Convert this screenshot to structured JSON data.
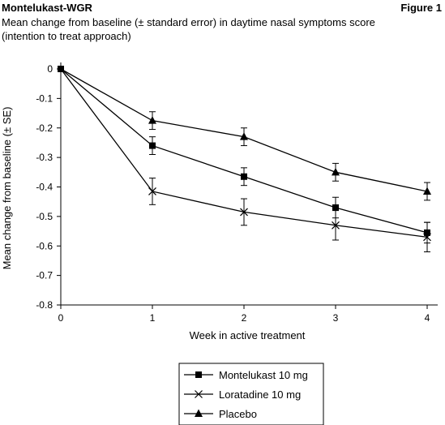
{
  "header": {
    "left": "Montelukast-WGR",
    "right": "Figure 1"
  },
  "subtitle_line1": "Mean change from baseline (± standard error) in daytime nasal symptoms score",
  "subtitle_line2": "(intention to treat approach)",
  "chart_data": {
    "type": "line",
    "xlabel": "Week in active treatment",
    "ylabel": "Mean change from baseline (± SE)",
    "xlim": [
      0,
      4
    ],
    "ylim": [
      -0.8,
      0
    ],
    "x": [
      0,
      1,
      2,
      3,
      4
    ],
    "xticks": [
      "0",
      "1",
      "2",
      "3",
      "4"
    ],
    "yticks": [
      "0",
      "-0.1",
      "-0.2",
      "-0.3",
      "-0.4",
      "-0.5",
      "-0.6",
      "-0.7",
      "-0.8"
    ],
    "grid": false,
    "legend_position": "bottom-center",
    "series": [
      {
        "name": "Montelukast 10 mg",
        "marker": "square",
        "values": [
          0,
          -0.26,
          -0.365,
          -0.47,
          -0.555
        ],
        "errors": [
          0,
          0.03,
          0.03,
          0.035,
          0.035
        ]
      },
      {
        "name": "Loratadine 10 mg",
        "marker": "x",
        "values": [
          0,
          -0.415,
          -0.485,
          -0.53,
          -0.57
        ],
        "errors": [
          0,
          0.045,
          0.045,
          0.05,
          0.05
        ]
      },
      {
        "name": "Placebo",
        "marker": "triangle",
        "values": [
          0,
          -0.175,
          -0.23,
          -0.35,
          -0.415
        ],
        "errors": [
          0,
          0.03,
          0.03,
          0.03,
          0.03
        ]
      }
    ]
  }
}
